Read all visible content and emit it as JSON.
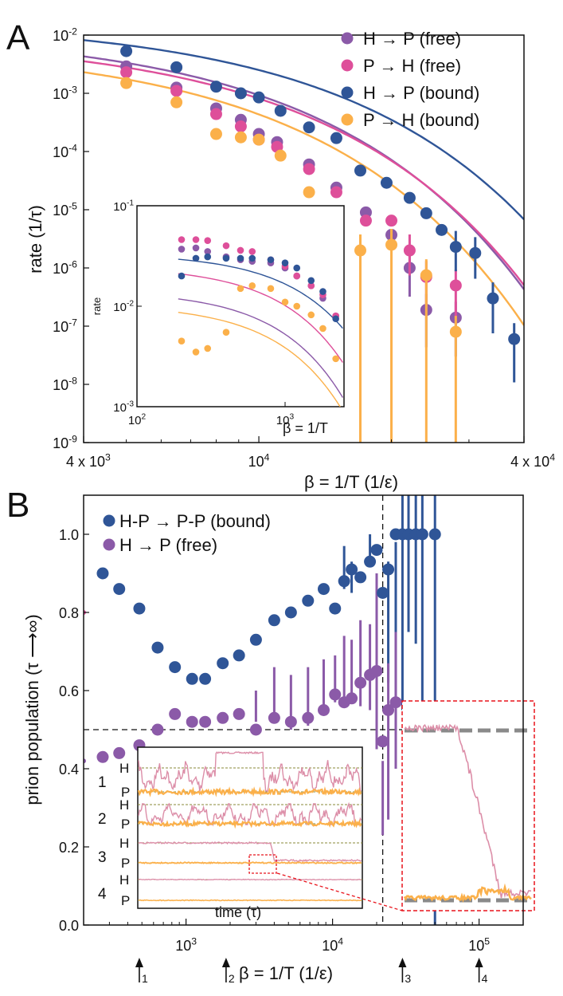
{
  "colors": {
    "purple": "#8b5aa8",
    "pink": "#de4f9a",
    "navy": "#2f5597",
    "orange": "#fbb04a",
    "pinktrace": "#dc8ea8",
    "olive": "#8a8a3a",
    "grey": "#8a8a8a",
    "red": "#e8141c"
  },
  "panelA": {
    "letter": "A",
    "ylabel": "rate  (1/τ)",
    "xlabel": "β = 1/T  (1/ε)",
    "xticks": [
      {
        "v": 4000,
        "base": "4 x 10",
        "exp": "3"
      },
      {
        "v": 10000,
        "base": "10",
        "exp": "4"
      },
      {
        "v": 40000,
        "base": "4 x 10",
        "exp": "4"
      }
    ],
    "yticks": [
      {
        "v": -2,
        "base": "10",
        "exp": "-2"
      },
      {
        "v": -3,
        "base": "10",
        "exp": "-3"
      },
      {
        "v": -4,
        "base": "10",
        "exp": "-4"
      },
      {
        "v": -5,
        "base": "10",
        "exp": "-5"
      },
      {
        "v": -6,
        "base": "10",
        "exp": "-6"
      },
      {
        "v": -7,
        "base": "10",
        "exp": "-7"
      },
      {
        "v": -8,
        "base": "10",
        "exp": "-8"
      },
      {
        "v": -9,
        "base": "10",
        "exp": "-9"
      }
    ],
    "legend": [
      {
        "label": "H → P (free)",
        "color": "purple"
      },
      {
        "label": "P → H (free)",
        "color": "pink"
      },
      {
        "label": "H → P (bound)",
        "color": "navy"
      },
      {
        "label": "P → H (bound)",
        "color": "orange"
      }
    ],
    "inset": {
      "ylabel": "rate",
      "xlabel": "β = 1/T",
      "xticks": [
        {
          "v": 100,
          "base": "10",
          "exp": "2"
        },
        {
          "v": 1000,
          "base": "10",
          "exp": "3"
        }
      ],
      "yticks": [
        {
          "v": -1,
          "base": "10",
          "exp": "-1"
        },
        {
          "v": -2,
          "base": "10",
          "exp": "-2"
        },
        {
          "v": -3,
          "base": "10",
          "exp": "-3"
        }
      ]
    }
  },
  "panelB": {
    "letter": "B",
    "ylabel": "prion population  (τ ⟶∞)",
    "xlabel": "β = 1/T  (1/ε)",
    "xticks": [
      {
        "v": 1000,
        "base": "10",
        "exp": "3"
      },
      {
        "v": 10000,
        "base": "10",
        "exp": "4"
      },
      {
        "v": 100000,
        "base": "10",
        "exp": "5"
      }
    ],
    "yticks": [
      "0.0",
      "0.2",
      "0.4",
      "0.6",
      "0.8",
      "1.0"
    ],
    "legend": [
      {
        "label": "H-P → P-P (bound)",
        "color": "navy"
      },
      {
        "label": "H → P (free)",
        "color": "purple"
      }
    ],
    "arrows": [
      {
        "v": 480,
        "label": "1"
      },
      {
        "v": 1900,
        "label": "2"
      },
      {
        "v": 30000,
        "label": "3"
      },
      {
        "v": 100000,
        "label": "4"
      }
    ],
    "inset": {
      "xlabel": "time (τ)",
      "rows": [
        {
          "num": "1",
          "h": "H",
          "p": "P"
        },
        {
          "num": "2",
          "h": "H",
          "p": "P"
        },
        {
          "num": "3",
          "h": "H",
          "p": "P"
        },
        {
          "num": "4",
          "h": "H",
          "p": "P"
        }
      ]
    }
  },
  "chart_data": [
    {
      "type": "scatter",
      "title": "A",
      "xlabel": "β = 1/T (1/ε)",
      "ylabel": "rate (1/τ)",
      "xscale": "log",
      "yscale": "log",
      "xlim": [
        4000,
        40000
      ],
      "ylim": [
        1e-09,
        0.01
      ],
      "series": [
        {
          "name": "H → P (free)",
          "color": "purple",
          "x": [
            5000,
            6500,
            8000,
            9100,
            10000,
            11000,
            13000,
            15000,
            17500,
            20000,
            22000,
            24000,
            28000
          ],
          "y": [
            0.0029,
            0.00125,
            0.00055,
            0.00035,
            0.0002,
            0.000145,
            6e-05,
            2.4e-05,
            9e-06,
            3.7e-06,
            1e-06,
            1.9e-07,
            1.4e-07
          ],
          "fit": {
            "A": 0.012,
            "b": 0.000256
          }
        },
        {
          "name": "P → H (free)",
          "color": "pink",
          "x": [
            5000,
            6500,
            8000,
            9100,
            10000,
            11000,
            13000,
            15000,
            17500,
            20000,
            22000,
            24000,
            28000
          ],
          "y": [
            0.0023,
            0.0011,
            0.00044,
            0.00027,
            0.00016,
            0.00012,
            5e-05,
            2e-05,
            6.5e-06,
            6.5e-06,
            2e-06,
            7e-07,
            5e-07
          ],
          "fit": {
            "A": 0.0095,
            "b": 0.000246
          }
        },
        {
          "name": "H → P (bound)",
          "color": "navy",
          "x": [
            5000,
            6500,
            8000,
            9100,
            10000,
            11200,
            13000,
            15000,
            17000,
            19500,
            22000,
            24000,
            26000,
            28000,
            31000,
            34000,
            38000
          ],
          "y": [
            0.0053,
            0.0028,
            0.0013,
            0.001,
            0.00085,
            0.0005,
            0.00026,
            0.00017,
            4.7e-05,
            2.9e-05,
            1.6e-05,
            8.7e-06,
            4.5e-06,
            2.3e-06,
            1.8e-06,
            3e-07,
            6e-08
          ],
          "fit": {
            "A": 0.018,
            "b": 0.000197
          }
        },
        {
          "name": "P → H (bound)",
          "color": "orange",
          "x": [
            5000,
            6500,
            8000,
            9100,
            10000,
            11200,
            13000,
            17000,
            20000,
            24000,
            28000
          ],
          "y": [
            0.0015,
            0.0007,
            0.0002,
            0.000175,
            0.00016,
            8.5e-05,
            2e-05,
            2e-06,
            2.5e-06,
            7.5e-07,
            8e-08
          ],
          "fit": {
            "A": 0.007,
            "b": 0.000278
          }
        }
      ]
    },
    {
      "type": "scatter",
      "title": "A inset",
      "xlabel": "β = 1/T",
      "ylabel": "rate",
      "xscale": "log",
      "yscale": "log",
      "xlim": [
        100,
        2500
      ],
      "ylim": [
        0.001,
        0.1
      ],
      "series": [
        {
          "name": "H → P (free)",
          "color": "purple",
          "x": [
            200,
            250,
            300,
            400,
            500,
            600,
            800,
            1000,
            1200,
            1500,
            1800,
            2200
          ],
          "y": [
            0.037,
            0.038,
            0.035,
            0.031,
            0.029,
            0.028,
            0.027,
            0.024,
            0.02,
            0.016,
            0.012,
            0.008
          ],
          "fit": {
            "a": 0.0143,
            "b": 0.001
          }
        },
        {
          "name": "P → H (free)",
          "color": "pink",
          "x": [
            200,
            250,
            300,
            400,
            500,
            600,
            800,
            1000,
            1200,
            1500,
            1800,
            2200
          ],
          "y": [
            0.046,
            0.046,
            0.045,
            0.04,
            0.036,
            0.035,
            0.029,
            0.025,
            0.02,
            0.016,
            0.013,
            0.008
          ],
          "fit": {
            "a": 0.025,
            "b": 0.0009
          }
        },
        {
          "name": "H → P (bound)",
          "color": "navy",
          "x": [
            200,
            250,
            300,
            400,
            500,
            600,
            800,
            1000,
            1200,
            1500,
            1800,
            2200
          ],
          "y": [
            0.02,
            0.03,
            0.031,
            0.03,
            0.03,
            0.03,
            0.029,
            0.027,
            0.024,
            0.018,
            0.014,
            0.0075
          ],
          "fit": {
            "a": 0.0335,
            "b": 0.0007
          }
        },
        {
          "name": "P → H (bound)",
          "color": "orange",
          "x": [
            200,
            250,
            300,
            400,
            500,
            600,
            800,
            1000,
            1200,
            1500,
            1800,
            2200
          ],
          "y": [
            0.0045,
            0.0035,
            0.0038,
            0.0055,
            0.015,
            0.016,
            0.015,
            0.011,
            0.01,
            0.0082,
            0.006,
            0.003
          ],
          "fit": {
            "a": 0.0105,
            "b": 0.001
          }
        }
      ]
    },
    {
      "type": "scatter",
      "title": "B",
      "xlabel": "β = 1/T (1/ε)",
      "ylabel": "prion population (τ ⟶∞)",
      "xscale": "log",
      "yscale": "linear",
      "xlim": [
        200,
        200000
      ],
      "ylim": [
        0,
        1.1
      ],
      "hlines": [
        0.5
      ],
      "vlines": [
        22000
      ],
      "series": [
        {
          "name": "H-P → P-P (bound)",
          "color": "navy",
          "x": [
            270,
            350,
            480,
            640,
            840,
            1100,
            1350,
            1780,
            2300,
            3000,
            4000,
            5200,
            6800,
            8700,
            10400,
            12000,
            13500,
            15500,
            18000,
            20000,
            22000,
            24000,
            27000,
            30000,
            33000,
            37000,
            41000,
            50000
          ],
          "y": [
            0.9,
            0.86,
            0.81,
            0.71,
            0.66,
            0.63,
            0.63,
            0.67,
            0.69,
            0.73,
            0.78,
            0.8,
            0.83,
            0.86,
            0.81,
            0.88,
            0.91,
            0.89,
            0.93,
            0.96,
            0.85,
            0.91,
            1.0,
            1.0,
            1.0,
            1.0,
            1.0,
            1.0
          ]
        },
        {
          "name": "H → P (free)",
          "color": "purple",
          "x": [
            270,
            350,
            480,
            640,
            840,
            1100,
            1350,
            1780,
            2300,
            3000,
            4000,
            5200,
            6800,
            8700,
            10400,
            12000,
            13500,
            15500,
            18000,
            20000,
            22000,
            24000,
            27000
          ],
          "y": [
            0.43,
            0.44,
            0.46,
            0.5,
            0.54,
            0.52,
            0.52,
            0.53,
            0.54,
            0.5,
            0.53,
            0.52,
            0.53,
            0.55,
            0.59,
            0.57,
            0.58,
            0.62,
            0.64,
            0.65,
            0.47,
            0.55,
            0.57
          ]
        }
      ]
    }
  ]
}
